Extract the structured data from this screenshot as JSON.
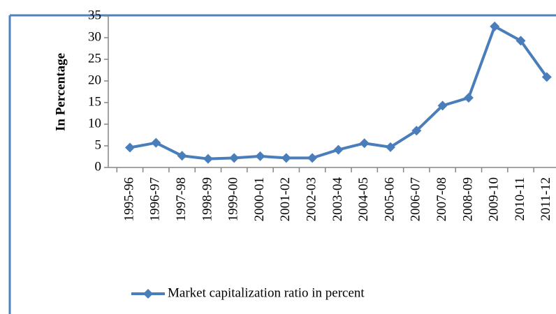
{
  "chart_data": {
    "type": "line",
    "y_label": "In Percentage",
    "categories": [
      "1995-96",
      "1996-97",
      "1997-98",
      "1998-99",
      "1999-00",
      "2000-01",
      "2001-02",
      "2002-03",
      "2003-04",
      "2004-05",
      "2005-06",
      "2006-07",
      "2007-08",
      "2008-09",
      "2009-10",
      "2010-11",
      "2011-12"
    ],
    "series": [
      {
        "name": "Market capitalization ratio in percent",
        "color": "#4a7ebb",
        "values": [
          4.6,
          5.7,
          2.7,
          2.0,
          2.2,
          2.6,
          2.2,
          2.2,
          4.1,
          5.6,
          4.7,
          8.5,
          14.3,
          16.1,
          32.6,
          29.3,
          20.9
        ]
      }
    ],
    "ylim": [
      0,
      35
    ],
    "yticks": [
      0,
      5,
      10,
      15,
      20,
      25,
      30,
      35
    ],
    "legend": "bottom"
  }
}
